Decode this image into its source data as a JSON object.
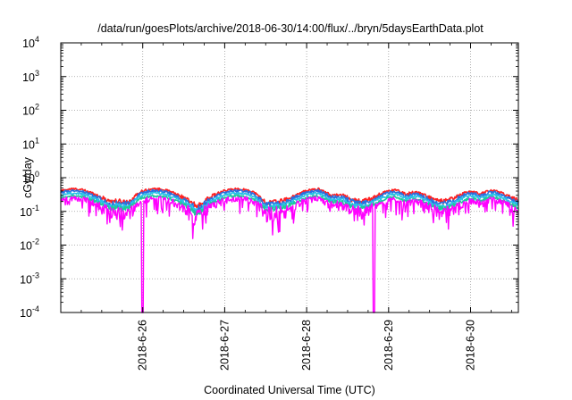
{
  "chart_data": {
    "type": "line",
    "title": "/data/run/goesPlots/archive/2018-06-30/14:00/flux/../bryn/5daysEarthData.plot",
    "xlabel": "Coordinated Universal Time (UTC)",
    "ylabel": "cGy/day",
    "yscale": "log",
    "ylim": [
      0.0001,
      10000
    ],
    "ytick_labels": [
      {
        "base": "10",
        "exp": "4",
        "value": 10000
      },
      {
        "base": "10",
        "exp": "3",
        "value": 1000
      },
      {
        "base": "10",
        "exp": "2",
        "value": 100
      },
      {
        "base": "10",
        "exp": "1",
        "value": 10
      },
      {
        "base": "10",
        "exp": "0",
        "value": 1
      },
      {
        "base": "10",
        "exp": "-1",
        "value": 0.1
      },
      {
        "base": "10",
        "exp": "-2",
        "value": 0.01
      },
      {
        "base": "10",
        "exp": "-3",
        "value": 0.001
      },
      {
        "base": "10",
        "exp": "-4",
        "value": 0.0001
      }
    ],
    "xlim": [
      "2018-06-25 00:00",
      "2018-06-30 14:00"
    ],
    "xtick_labels": [
      {
        "label": "2018-6-26",
        "value": "2018-06-26"
      },
      {
        "label": "2018-6-27",
        "value": "2018-06-27"
      },
      {
        "label": "2018-6-28",
        "value": "2018-06-28"
      },
      {
        "label": "2018-6-29",
        "value": "2018-06-29"
      },
      {
        "label": "2018-6-30",
        "value": "2018-06-30"
      }
    ],
    "grid": true,
    "legend": "none",
    "series": [
      {
        "color": "#ff2020",
        "base": 0.33,
        "amp": 0.13,
        "noise": 0.07
      },
      {
        "color": "#2a6fe0",
        "base": 0.29,
        "amp": 0.12,
        "noise": 0.07
      },
      {
        "color": "#29c0e8",
        "base": 0.245,
        "amp": 0.1,
        "noise": 0.05
      },
      {
        "color": "#1ec99a",
        "base": 0.205,
        "amp": 0.08,
        "noise": 0.04
      },
      {
        "color": "#ff00ff",
        "base": 0.17,
        "amp": 0.07,
        "noise": 0.09,
        "dropouts": [
          "2018-06-25 23:55",
          "2018-06-28 19:40"
        ]
      }
    ]
  }
}
